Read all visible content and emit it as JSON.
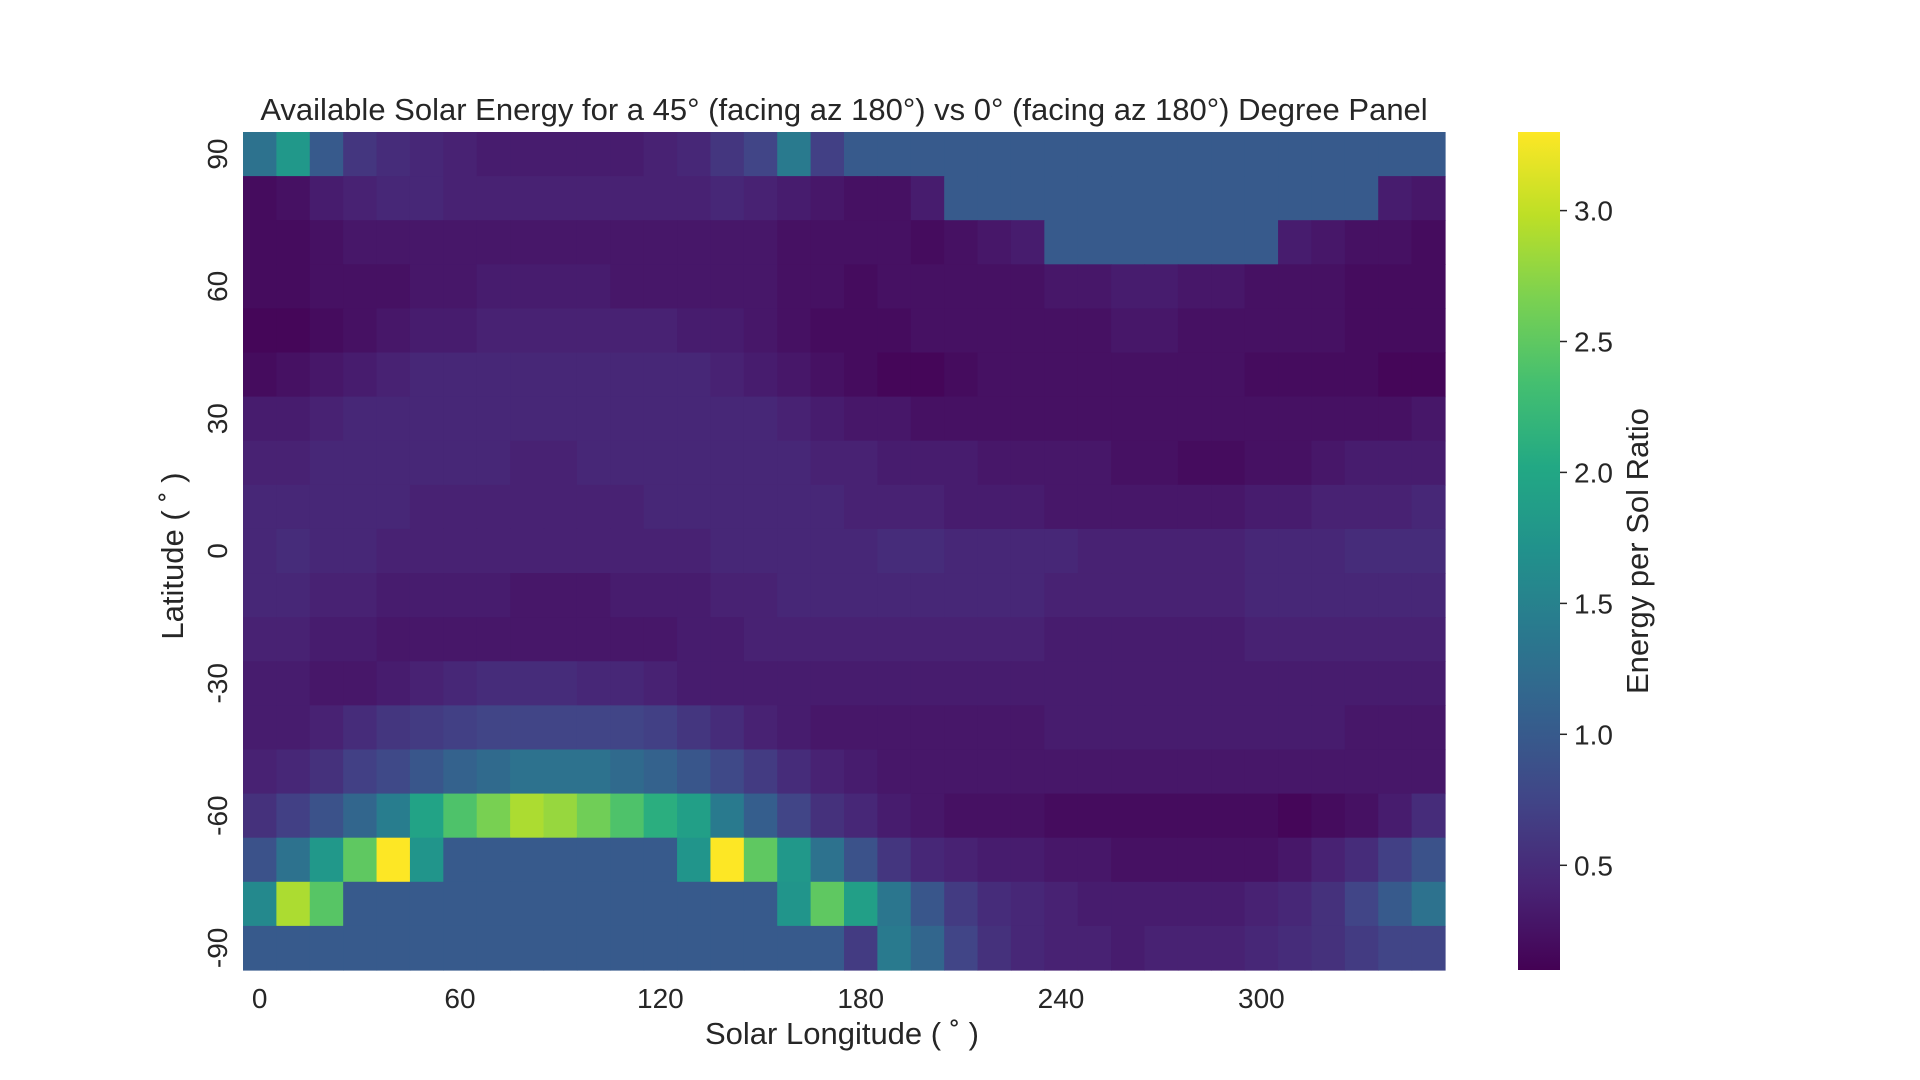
{
  "chart_data": {
    "type": "heatmap",
    "title": "Available Solar Energy for a 45° (facing az 180°) vs 0° (facing az 180°) Degree Panel",
    "xlabel": "Solar Longitude ( ˚ )",
    "ylabel": "Latitude ( ˚ )",
    "colorbar_label": "Energy per Sol Ratio",
    "colormap": "viridis",
    "vmin": 0.1,
    "vmax": 3.3,
    "grid": false,
    "x_ticks": [
      "0",
      "60",
      "120",
      "180",
      "240",
      "300"
    ],
    "x_tick_values": [
      0,
      60,
      120,
      180,
      240,
      300
    ],
    "y_ticks": [
      "90",
      "60",
      "30",
      "0",
      "-30",
      "-60",
      "-90"
    ],
    "y_tick_values": [
      90,
      60,
      30,
      0,
      -30,
      -60,
      -90
    ],
    "colorbar_ticks": [
      "0.5",
      "1.0",
      "1.5",
      "2.0",
      "2.5",
      "3.0"
    ],
    "colorbar_tick_values": [
      0.5,
      1.0,
      1.5,
      2.0,
      2.5,
      3.0
    ],
    "x": [
      0,
      10,
      20,
      30,
      40,
      50,
      60,
      70,
      80,
      90,
      100,
      110,
      120,
      130,
      140,
      150,
      160,
      170,
      180,
      190,
      200,
      210,
      220,
      230,
      240,
      250,
      260,
      270,
      280,
      290,
      300,
      310,
      320,
      330,
      340,
      350
    ],
    "y": [
      90,
      80,
      70,
      60,
      50,
      40,
      30,
      20,
      10,
      0,
      -10,
      -20,
      -30,
      -40,
      -50,
      -60,
      -70,
      -80,
      -90
    ],
    "values": [
      [
        1.3,
        1.8,
        1.0,
        0.6,
        0.5,
        0.45,
        0.4,
        0.35,
        0.35,
        0.35,
        0.35,
        0.35,
        0.4,
        0.45,
        0.6,
        0.75,
        1.4,
        0.7,
        1.0,
        1.0,
        1.0,
        1.0,
        1.0,
        1.0,
        1.0,
        1.0,
        1.0,
        1.0,
        1.0,
        1.0,
        1.0,
        1.0,
        1.0,
        1.0,
        1.0,
        1.0
      ],
      [
        0.2,
        0.25,
        0.35,
        0.4,
        0.45,
        0.45,
        0.4,
        0.4,
        0.4,
        0.4,
        0.4,
        0.4,
        0.4,
        0.4,
        0.45,
        0.4,
        0.35,
        0.3,
        0.25,
        0.25,
        0.35,
        1.0,
        1.0,
        1.0,
        1.0,
        1.0,
        1.0,
        1.0,
        1.0,
        1.0,
        1.0,
        1.0,
        1.0,
        1.0,
        0.35,
        0.3
      ],
      [
        0.2,
        0.2,
        0.25,
        0.3,
        0.3,
        0.3,
        0.3,
        0.3,
        0.3,
        0.3,
        0.3,
        0.3,
        0.3,
        0.3,
        0.3,
        0.3,
        0.25,
        0.25,
        0.25,
        0.25,
        0.2,
        0.25,
        0.3,
        0.35,
        1.0,
        1.0,
        1.0,
        1.0,
        1.0,
        1.0,
        1.0,
        0.35,
        0.3,
        0.25,
        0.25,
        0.2
      ],
      [
        0.2,
        0.2,
        0.25,
        0.25,
        0.25,
        0.3,
        0.3,
        0.35,
        0.35,
        0.35,
        0.35,
        0.3,
        0.3,
        0.3,
        0.3,
        0.3,
        0.25,
        0.25,
        0.2,
        0.25,
        0.25,
        0.25,
        0.25,
        0.25,
        0.3,
        0.3,
        0.35,
        0.35,
        0.3,
        0.3,
        0.25,
        0.25,
        0.25,
        0.2,
        0.2,
        0.2
      ],
      [
        0.15,
        0.15,
        0.2,
        0.25,
        0.3,
        0.35,
        0.35,
        0.4,
        0.4,
        0.4,
        0.4,
        0.4,
        0.4,
        0.35,
        0.35,
        0.3,
        0.25,
        0.2,
        0.2,
        0.2,
        0.25,
        0.25,
        0.25,
        0.25,
        0.25,
        0.25,
        0.3,
        0.3,
        0.25,
        0.25,
        0.25,
        0.25,
        0.25,
        0.2,
        0.2,
        0.2
      ],
      [
        0.2,
        0.25,
        0.3,
        0.35,
        0.4,
        0.45,
        0.45,
        0.45,
        0.45,
        0.45,
        0.45,
        0.45,
        0.45,
        0.45,
        0.4,
        0.35,
        0.3,
        0.25,
        0.2,
        0.15,
        0.15,
        0.2,
        0.25,
        0.25,
        0.25,
        0.25,
        0.25,
        0.25,
        0.25,
        0.25,
        0.2,
        0.2,
        0.2,
        0.2,
        0.15,
        0.15
      ],
      [
        0.35,
        0.35,
        0.4,
        0.45,
        0.45,
        0.45,
        0.45,
        0.45,
        0.45,
        0.45,
        0.45,
        0.45,
        0.45,
        0.45,
        0.45,
        0.45,
        0.4,
        0.35,
        0.3,
        0.3,
        0.25,
        0.25,
        0.25,
        0.25,
        0.25,
        0.25,
        0.25,
        0.25,
        0.25,
        0.25,
        0.25,
        0.25,
        0.25,
        0.25,
        0.25,
        0.3
      ],
      [
        0.4,
        0.4,
        0.45,
        0.45,
        0.45,
        0.45,
        0.45,
        0.45,
        0.4,
        0.4,
        0.45,
        0.45,
        0.45,
        0.45,
        0.45,
        0.45,
        0.45,
        0.4,
        0.4,
        0.35,
        0.35,
        0.35,
        0.3,
        0.3,
        0.3,
        0.3,
        0.25,
        0.25,
        0.2,
        0.2,
        0.25,
        0.25,
        0.3,
        0.35,
        0.35,
        0.35
      ],
      [
        0.45,
        0.45,
        0.45,
        0.45,
        0.45,
        0.4,
        0.4,
        0.4,
        0.4,
        0.4,
        0.4,
        0.4,
        0.45,
        0.45,
        0.45,
        0.45,
        0.45,
        0.45,
        0.4,
        0.4,
        0.4,
        0.35,
        0.35,
        0.35,
        0.3,
        0.3,
        0.3,
        0.3,
        0.3,
        0.3,
        0.35,
        0.35,
        0.4,
        0.4,
        0.4,
        0.45
      ],
      [
        0.45,
        0.5,
        0.45,
        0.45,
        0.4,
        0.4,
        0.4,
        0.4,
        0.4,
        0.4,
        0.4,
        0.4,
        0.4,
        0.4,
        0.45,
        0.45,
        0.45,
        0.45,
        0.45,
        0.5,
        0.5,
        0.45,
        0.45,
        0.45,
        0.45,
        0.4,
        0.4,
        0.4,
        0.4,
        0.4,
        0.45,
        0.45,
        0.45,
        0.5,
        0.5,
        0.5
      ],
      [
        0.45,
        0.45,
        0.4,
        0.4,
        0.35,
        0.35,
        0.35,
        0.35,
        0.3,
        0.3,
        0.3,
        0.35,
        0.35,
        0.35,
        0.4,
        0.4,
        0.45,
        0.45,
        0.45,
        0.45,
        0.45,
        0.45,
        0.45,
        0.45,
        0.4,
        0.4,
        0.4,
        0.4,
        0.4,
        0.4,
        0.45,
        0.45,
        0.45,
        0.45,
        0.45,
        0.45
      ],
      [
        0.4,
        0.4,
        0.35,
        0.35,
        0.3,
        0.3,
        0.3,
        0.3,
        0.3,
        0.3,
        0.3,
        0.3,
        0.3,
        0.35,
        0.35,
        0.4,
        0.4,
        0.4,
        0.4,
        0.4,
        0.4,
        0.4,
        0.4,
        0.4,
        0.35,
        0.35,
        0.35,
        0.35,
        0.35,
        0.35,
        0.4,
        0.4,
        0.4,
        0.4,
        0.4,
        0.4
      ],
      [
        0.35,
        0.35,
        0.3,
        0.3,
        0.35,
        0.4,
        0.45,
        0.5,
        0.5,
        0.5,
        0.45,
        0.45,
        0.4,
        0.35,
        0.35,
        0.35,
        0.35,
        0.35,
        0.35,
        0.35,
        0.35,
        0.35,
        0.35,
        0.35,
        0.35,
        0.35,
        0.35,
        0.35,
        0.35,
        0.35,
        0.35,
        0.35,
        0.35,
        0.35,
        0.35,
        0.35
      ],
      [
        0.35,
        0.35,
        0.4,
        0.5,
        0.6,
        0.65,
        0.7,
        0.75,
        0.75,
        0.75,
        0.75,
        0.75,
        0.7,
        0.6,
        0.5,
        0.4,
        0.35,
        0.3,
        0.3,
        0.3,
        0.3,
        0.3,
        0.3,
        0.3,
        0.35,
        0.35,
        0.35,
        0.35,
        0.35,
        0.35,
        0.35,
        0.35,
        0.35,
        0.3,
        0.3,
        0.3
      ],
      [
        0.4,
        0.45,
        0.55,
        0.7,
        0.8,
        0.95,
        1.1,
        1.2,
        1.3,
        1.3,
        1.3,
        1.2,
        1.1,
        0.95,
        0.8,
        0.65,
        0.5,
        0.4,
        0.35,
        0.3,
        0.3,
        0.3,
        0.3,
        0.3,
        0.3,
        0.3,
        0.3,
        0.3,
        0.3,
        0.3,
        0.3,
        0.3,
        0.3,
        0.3,
        0.3,
        0.3
      ],
      [
        0.55,
        0.7,
        0.9,
        1.15,
        1.45,
        1.95,
        2.4,
        2.65,
        2.9,
        2.8,
        2.6,
        2.4,
        2.1,
        1.9,
        1.4,
        1.05,
        0.75,
        0.55,
        0.45,
        0.35,
        0.3,
        0.25,
        0.25,
        0.25,
        0.2,
        0.2,
        0.2,
        0.2,
        0.2,
        0.2,
        0.2,
        0.15,
        0.2,
        0.25,
        0.35,
        0.5
      ],
      [
        0.9,
        1.3,
        1.8,
        2.5,
        3.3,
        1.75,
        1.0,
        1.0,
        1.0,
        1.0,
        1.0,
        1.0,
        1.0,
        1.75,
        3.3,
        2.5,
        1.8,
        1.3,
        0.9,
        0.6,
        0.45,
        0.4,
        0.35,
        0.35,
        0.3,
        0.3,
        0.25,
        0.25,
        0.25,
        0.25,
        0.25,
        0.3,
        0.4,
        0.5,
        0.7,
        0.9
      ],
      [
        1.6,
        2.9,
        2.45,
        1.0,
        1.0,
        1.0,
        1.0,
        1.0,
        1.0,
        1.0,
        1.0,
        1.0,
        1.0,
        1.0,
        1.0,
        1.0,
        1.75,
        2.5,
        1.9,
        1.35,
        0.95,
        0.65,
        0.5,
        0.45,
        0.4,
        0.35,
        0.35,
        0.35,
        0.35,
        0.35,
        0.4,
        0.45,
        0.55,
        0.75,
        1.0,
        1.3
      ],
      [
        1.0,
        1.0,
        1.0,
        1.0,
        1.0,
        1.0,
        1.0,
        1.0,
        1.0,
        1.0,
        1.0,
        1.0,
        1.0,
        1.0,
        1.0,
        1.0,
        1.0,
        1.0,
        0.65,
        1.4,
        1.15,
        0.75,
        0.55,
        0.45,
        0.4,
        0.4,
        0.35,
        0.4,
        0.4,
        0.4,
        0.45,
        0.5,
        0.55,
        0.65,
        0.75,
        0.75
      ]
    ]
  }
}
